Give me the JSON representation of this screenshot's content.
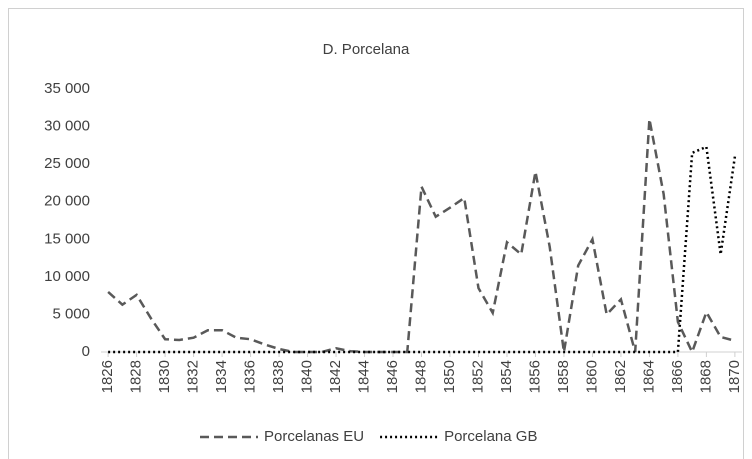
{
  "chart_data": {
    "type": "line",
    "title": "D. Porcelana",
    "x": [
      1826,
      1827,
      1828,
      1829,
      1830,
      1831,
      1832,
      1833,
      1834,
      1835,
      1836,
      1837,
      1838,
      1839,
      1840,
      1841,
      1842,
      1843,
      1844,
      1845,
      1846,
      1847,
      1848,
      1849,
      1850,
      1851,
      1852,
      1853,
      1854,
      1855,
      1856,
      1857,
      1858,
      1859,
      1860,
      1861,
      1862,
      1863,
      1864,
      1865,
      1866,
      1867,
      1868,
      1869,
      1870
    ],
    "xlim": [
      1825.5,
      1870.5
    ],
    "xticks": [
      1826,
      1828,
      1830,
      1832,
      1834,
      1836,
      1838,
      1840,
      1842,
      1844,
      1846,
      1848,
      1850,
      1852,
      1854,
      1856,
      1858,
      1860,
      1862,
      1864,
      1866,
      1868,
      1870
    ],
    "ylim": [
      0,
      35000
    ],
    "yticks": [
      0,
      {
        "value": 5000,
        "label": "5 000"
      },
      {
        "value": 10000,
        "label": "10 000"
      },
      {
        "value": 15000,
        "label": "15 000"
      },
      {
        "value": 20000,
        "label": "20 000"
      },
      {
        "value": 25000,
        "label": "25 000"
      },
      {
        "value": 30000,
        "label": "30 000"
      },
      {
        "value": 35000,
        "label": "35 000"
      }
    ],
    "grid": false,
    "legend": "bottom",
    "series": [
      {
        "name": "Porcelanas EU",
        "color": "#595959",
        "dash": "dashed",
        "values": [
          8000,
          6300,
          7600,
          4500,
          1700,
          1600,
          1900,
          2900,
          2900,
          1900,
          1700,
          1000,
          400,
          0,
          0,
          0,
          500,
          100,
          0,
          0,
          0,
          0,
          22000,
          18000,
          19200,
          20500,
          8500,
          5200,
          14600,
          13000,
          24000,
          14000,
          0,
          11500,
          15000,
          5000,
          7000,
          0,
          31000,
          21000,
          4000,
          0,
          5300,
          2000,
          1500
        ]
      },
      {
        "name": "Porcelana GB",
        "color": "#000000",
        "dash": "dotted",
        "values": [
          0,
          0,
          0,
          0,
          0,
          0,
          0,
          0,
          0,
          0,
          0,
          0,
          0,
          0,
          0,
          0,
          0,
          0,
          0,
          0,
          0,
          0,
          0,
          0,
          0,
          0,
          0,
          0,
          0,
          0,
          0,
          0,
          0,
          0,
          0,
          0,
          0,
          0,
          0,
          0,
          0,
          26500,
          27300,
          13000,
          26000
        ]
      }
    ]
  }
}
